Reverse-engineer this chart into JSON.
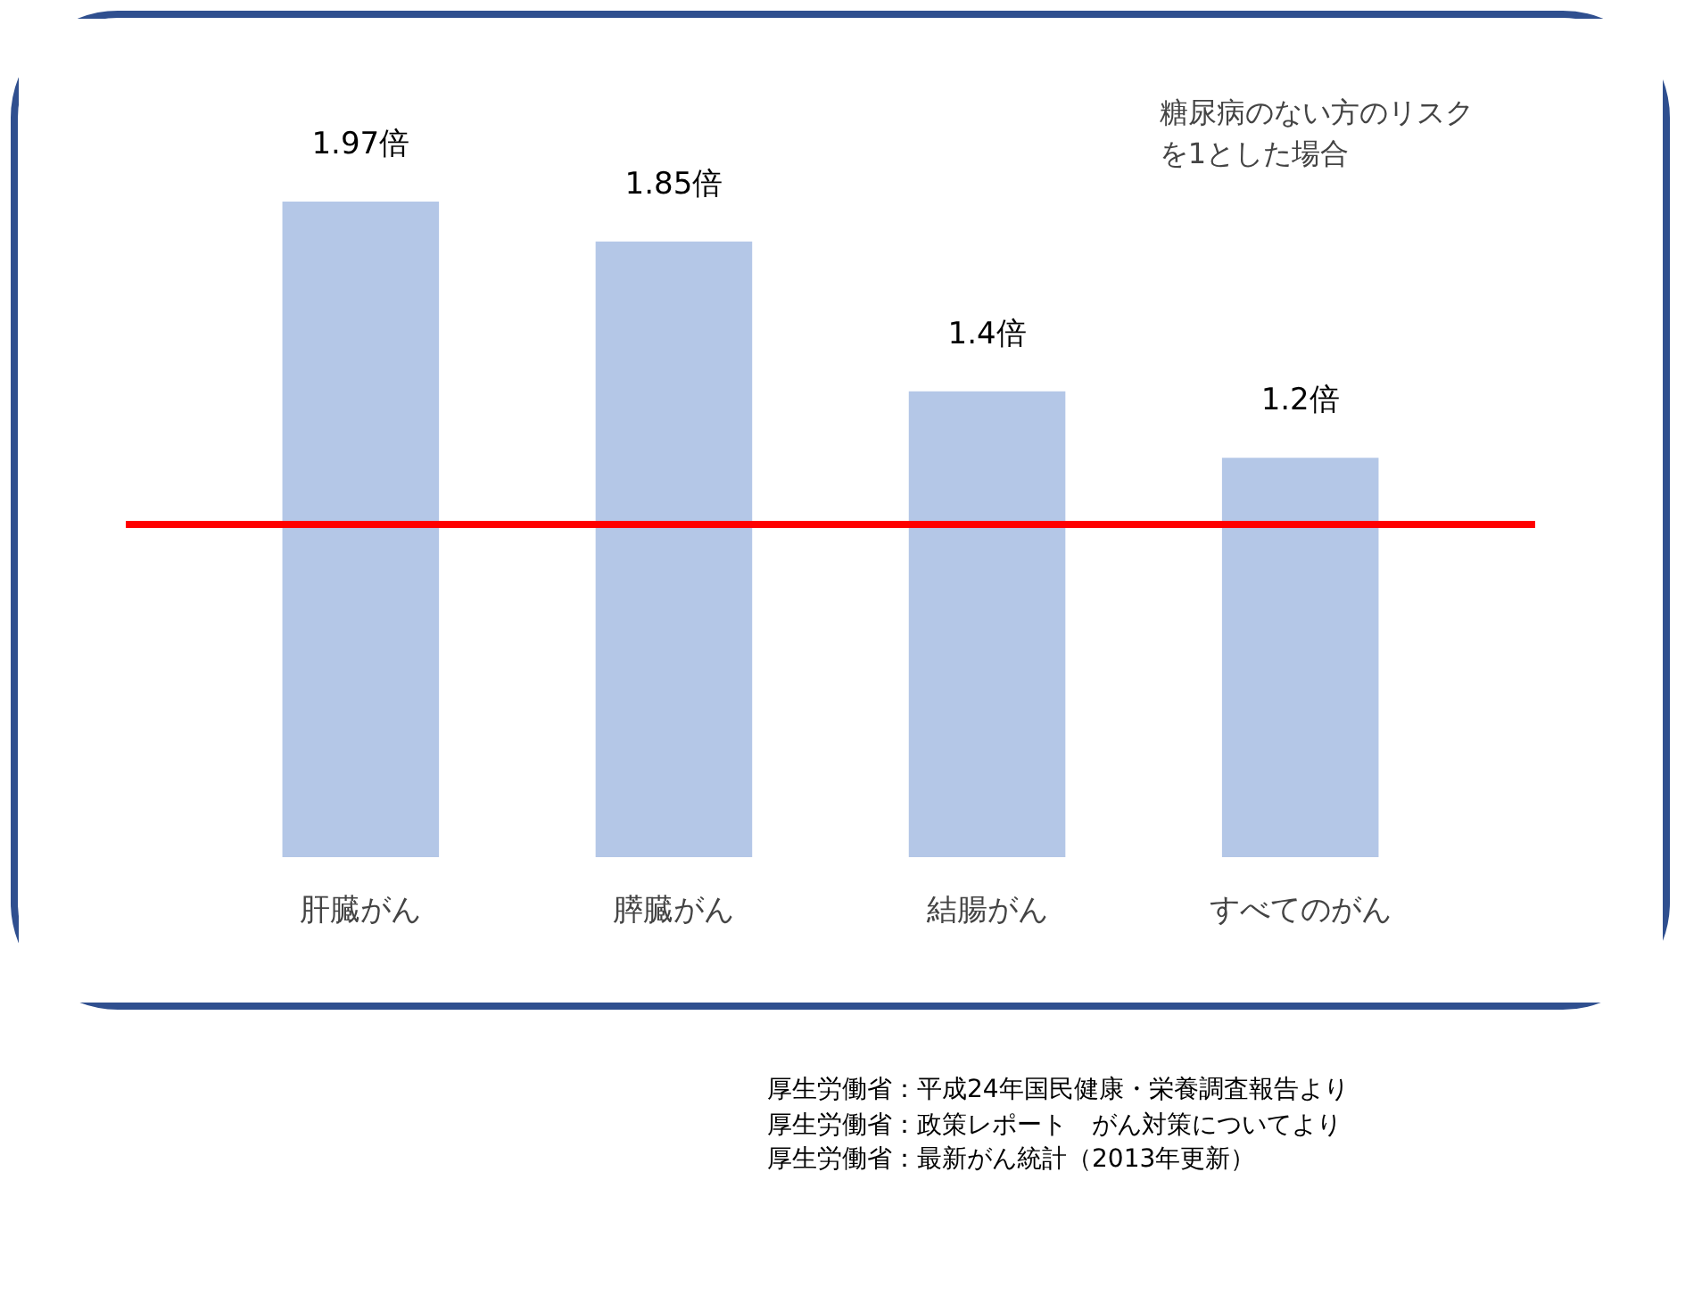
{
  "chart_data": {
    "type": "bar",
    "categories": [
      "肝臓がん",
      "膵臓がん",
      "結腸がん",
      "すべてのがん"
    ],
    "values": [
      1.97,
      1.85,
      1.4,
      1.2
    ],
    "value_labels": [
      "1.97倍",
      "1.85倍",
      "1.4倍",
      "1.2倍"
    ],
    "color": "#b4c7e7",
    "tick_labels": "x",
    "grid": false,
    "ref_lines": [
      {
        "axis": "y",
        "value": 1,
        "color": "#ff0000"
      }
    ],
    "annotations": [
      "糖尿病のない方のリスクを1とした場合",
      "厚生労働省：平成24年国民健康・栄養調査報告より",
      "厚生労働省：政策レポート　がん対策についてより",
      "厚生労働省：最新がん統計（2013年更新）"
    ]
  }
}
